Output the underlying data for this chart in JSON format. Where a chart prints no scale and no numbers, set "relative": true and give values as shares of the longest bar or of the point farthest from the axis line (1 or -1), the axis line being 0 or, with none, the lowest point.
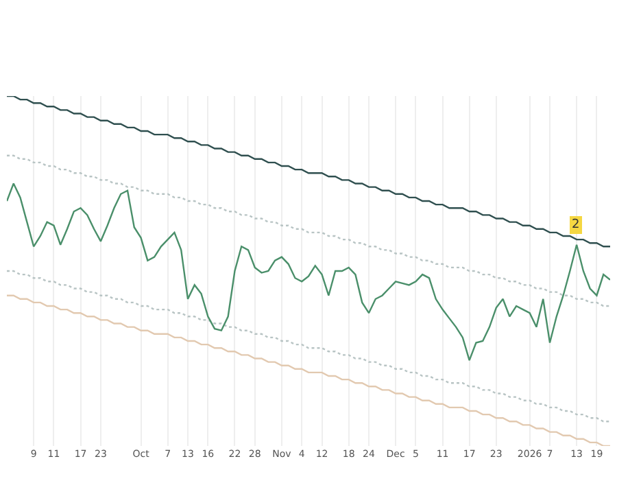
{
  "chart_data": {
    "type": "line",
    "relative": true,
    "grid": "x",
    "categories": [
      null,
      null,
      null,
      null,
      "9",
      null,
      null,
      "11",
      null,
      null,
      null,
      "17",
      null,
      null,
      "23",
      null,
      null,
      null,
      null,
      null,
      "Oct",
      null,
      null,
      null,
      "7",
      null,
      null,
      "13",
      null,
      null,
      "16",
      null,
      null,
      null,
      "22",
      null,
      null,
      "28",
      null,
      null,
      null,
      "Nov",
      null,
      null,
      "4",
      null,
      null,
      "12",
      null,
      null,
      null,
      "18",
      null,
      null,
      "24",
      null,
      null,
      null,
      "Dec",
      null,
      null,
      "5",
      null,
      null,
      null,
      "11",
      null,
      null,
      null,
      "17",
      null,
      null,
      null,
      "23",
      null,
      null,
      null,
      null,
      "2026",
      null,
      null,
      "7",
      null,
      null,
      null,
      "13",
      null,
      null,
      "19",
      null,
      null
    ],
    "series": [
      {
        "color": "#b8c4c4",
        "line_style": "dotted",
        "values": [
          0.83,
          0.83,
          0.82,
          0.82,
          0.81,
          0.81,
          0.8,
          0.8,
          0.79,
          0.79,
          0.78,
          0.78,
          0.77,
          0.77,
          0.76,
          0.76,
          0.75,
          0.75,
          0.74,
          0.74,
          0.73,
          0.73,
          0.72,
          0.72,
          0.72,
          0.71,
          0.71,
          0.7,
          0.7,
          0.69,
          0.69,
          0.68,
          0.68,
          0.67,
          0.67,
          0.66,
          0.66,
          0.65,
          0.65,
          0.64,
          0.64,
          0.63,
          0.63,
          0.62,
          0.62,
          0.61,
          0.61,
          0.61,
          0.6,
          0.6,
          0.59,
          0.59,
          0.58,
          0.58,
          0.57,
          0.57,
          0.56,
          0.56,
          0.55,
          0.55,
          0.54,
          0.54,
          0.53,
          0.53,
          0.52,
          0.52,
          0.51,
          0.51,
          0.51,
          0.5,
          0.5,
          0.49,
          0.49,
          0.48,
          0.48,
          0.47,
          0.47,
          0.46,
          0.46,
          0.45,
          0.45,
          0.44,
          0.44,
          0.43,
          0.43,
          0.42,
          0.42,
          0.41,
          0.41,
          0.4,
          0.4
        ]
      },
      {
        "color": "#b8c4c4",
        "line_style": "dotted",
        "values": [
          0.5,
          0.5,
          0.49,
          0.49,
          0.48,
          0.48,
          0.47,
          0.47,
          0.46,
          0.46,
          0.45,
          0.45,
          0.44,
          0.44,
          0.43,
          0.43,
          0.42,
          0.42,
          0.41,
          0.41,
          0.4,
          0.4,
          0.39,
          0.39,
          0.39,
          0.38,
          0.38,
          0.37,
          0.37,
          0.36,
          0.36,
          0.35,
          0.35,
          0.34,
          0.34,
          0.33,
          0.33,
          0.32,
          0.32,
          0.31,
          0.31,
          0.3,
          0.3,
          0.29,
          0.29,
          0.28,
          0.28,
          0.28,
          0.27,
          0.27,
          0.26,
          0.26,
          0.25,
          0.25,
          0.24,
          0.24,
          0.23,
          0.23,
          0.22,
          0.22,
          0.21,
          0.21,
          0.2,
          0.2,
          0.19,
          0.19,
          0.18,
          0.18,
          0.18,
          0.17,
          0.17,
          0.16,
          0.16,
          0.15,
          0.15,
          0.14,
          0.14,
          0.13,
          0.13,
          0.12,
          0.12,
          0.11,
          0.11,
          0.1,
          0.1,
          0.09,
          0.09,
          0.08,
          0.08,
          0.07,
          0.07
        ]
      },
      {
        "color": "#e2c9b0",
        "line_style": "solid",
        "values": [
          0.43,
          0.43,
          0.42,
          0.42,
          0.41,
          0.41,
          0.4,
          0.4,
          0.39,
          0.39,
          0.38,
          0.38,
          0.37,
          0.37,
          0.36,
          0.36,
          0.35,
          0.35,
          0.34,
          0.34,
          0.33,
          0.33,
          0.32,
          0.32,
          0.32,
          0.31,
          0.31,
          0.3,
          0.3,
          0.29,
          0.29,
          0.28,
          0.28,
          0.27,
          0.27,
          0.26,
          0.26,
          0.25,
          0.25,
          0.24,
          0.24,
          0.23,
          0.23,
          0.22,
          0.22,
          0.21,
          0.21,
          0.21,
          0.2,
          0.2,
          0.19,
          0.19,
          0.18,
          0.18,
          0.17,
          0.17,
          0.16,
          0.16,
          0.15,
          0.15,
          0.14,
          0.14,
          0.13,
          0.13,
          0.12,
          0.12,
          0.11,
          0.11,
          0.11,
          0.1,
          0.1,
          0.09,
          0.09,
          0.08,
          0.08,
          0.07,
          0.07,
          0.06,
          0.06,
          0.05,
          0.05,
          0.04,
          0.04,
          0.03,
          0.03,
          0.02,
          0.02,
          0.01,
          0.01,
          0,
          0
        ]
      },
      {
        "color": "#2f4f4f",
        "line_style": "solid",
        "values": [
          1.0,
          1.0,
          0.99,
          0.99,
          0.98,
          0.98,
          0.97,
          0.97,
          0.96,
          0.96,
          0.95,
          0.95,
          0.94,
          0.94,
          0.93,
          0.93,
          0.92,
          0.92,
          0.91,
          0.91,
          0.9,
          0.9,
          0.89,
          0.89,
          0.89,
          0.88,
          0.88,
          0.87,
          0.87,
          0.86,
          0.86,
          0.85,
          0.85,
          0.84,
          0.84,
          0.83,
          0.83,
          0.82,
          0.82,
          0.81,
          0.81,
          0.8,
          0.8,
          0.79,
          0.79,
          0.78,
          0.78,
          0.78,
          0.77,
          0.77,
          0.76,
          0.76,
          0.75,
          0.75,
          0.74,
          0.74,
          0.73,
          0.73,
          0.72,
          0.72,
          0.71,
          0.71,
          0.7,
          0.7,
          0.69,
          0.69,
          0.68,
          0.68,
          0.68,
          0.67,
          0.67,
          0.66,
          0.66,
          0.65,
          0.65,
          0.64,
          0.64,
          0.63,
          0.63,
          0.62,
          0.62,
          0.61,
          0.61,
          0.6,
          0.6,
          0.59,
          0.59,
          0.58,
          0.58,
          0.57,
          0.57
        ]
      },
      {
        "color": "#4a8f6a",
        "line_style": "solid",
        "values": [
          0.7,
          0.75,
          0.71,
          0.64,
          0.57,
          0.6,
          0.64,
          0.63,
          0.575,
          0.62,
          0.67,
          0.68,
          0.66,
          0.62,
          0.585,
          0.63,
          0.68,
          0.72,
          0.73,
          0.625,
          0.595,
          0.53,
          0.54,
          0.57,
          0.59,
          0.61,
          0.56,
          0.42,
          0.46,
          0.435,
          0.37,
          0.335,
          0.33,
          0.37,
          0.5,
          0.57,
          0.56,
          0.51,
          0.495,
          0.5,
          0.53,
          0.54,
          0.52,
          0.48,
          0.47,
          0.485,
          0.515,
          0.49,
          0.43,
          0.5,
          0.5,
          0.51,
          0.49,
          0.41,
          0.38,
          0.42,
          0.43,
          0.45,
          0.47,
          0.465,
          0.46,
          0.47,
          0.49,
          0.48,
          0.42,
          0.39,
          0.365,
          0.34,
          0.31,
          0.245,
          0.295,
          0.3,
          0.34,
          0.395,
          0.42,
          0.37,
          0.4,
          0.39,
          0.38,
          0.34,
          0.42,
          0.295,
          0.37,
          0.43,
          0.5,
          0.575,
          0.5,
          0.45,
          0.43,
          0.49,
          0.475
        ]
      }
    ],
    "annotations": [
      "2"
    ]
  }
}
